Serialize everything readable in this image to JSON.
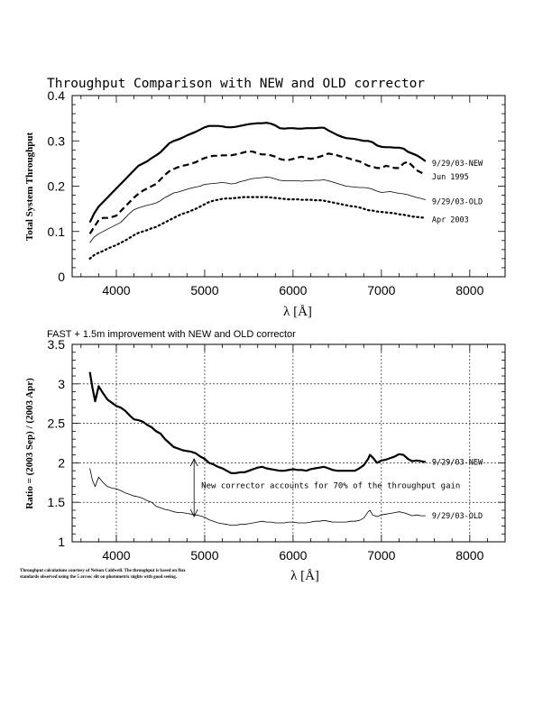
{
  "chart_data": [
    {
      "type": "line",
      "title": "Throughput Comparison with NEW and OLD corrector",
      "xlabel": "λ [Å]",
      "ylabel": "Total System Throughput",
      "xlim": [
        3500,
        8400
      ],
      "ylim": [
        0,
        0.4
      ],
      "xticks": [
        4000,
        5000,
        6000,
        7000,
        8000
      ],
      "yticks": [
        0,
        0.1,
        0.2,
        0.3,
        0.4
      ],
      "grid": false,
      "series": [
        {
          "name": "9/29/03-NEW",
          "style": "solid-thick",
          "x": [
            3700,
            3750,
            3800,
            3850,
            3900,
            3950,
            4000,
            4050,
            4100,
            4150,
            4200,
            4250,
            4300,
            4350,
            4400,
            4450,
            4500,
            4550,
            4600,
            4650,
            4700,
            4750,
            4800,
            4850,
            4900,
            4950,
            5000,
            5050,
            5100,
            5150,
            5200,
            5250,
            5300,
            5350,
            5400,
            5450,
            5500,
            5550,
            5600,
            5650,
            5700,
            5750,
            5800,
            5850,
            5900,
            5950,
            6000,
            6050,
            6100,
            6150,
            6200,
            6250,
            6300,
            6350,
            6400,
            6450,
            6500,
            6550,
            6600,
            6650,
            6700,
            6750,
            6800,
            6850,
            6900,
            6950,
            7000,
            7050,
            7100,
            7150,
            7200,
            7250,
            7300,
            7350,
            7400,
            7450,
            7500
          ],
          "y": [
            0.12,
            0.14,
            0.155,
            0.165,
            0.175,
            0.185,
            0.195,
            0.205,
            0.215,
            0.225,
            0.235,
            0.245,
            0.25,
            0.255,
            0.262,
            0.268,
            0.275,
            0.285,
            0.295,
            0.3,
            0.303,
            0.307,
            0.312,
            0.316,
            0.32,
            0.325,
            0.33,
            0.333,
            0.333,
            0.333,
            0.332,
            0.33,
            0.33,
            0.331,
            0.333,
            0.335,
            0.337,
            0.338,
            0.339,
            0.339,
            0.34,
            0.338,
            0.334,
            0.328,
            0.327,
            0.328,
            0.328,
            0.327,
            0.327,
            0.328,
            0.328,
            0.328,
            0.329,
            0.329,
            0.323,
            0.318,
            0.313,
            0.309,
            0.306,
            0.305,
            0.304,
            0.302,
            0.3,
            0.3,
            0.297,
            0.29,
            0.287,
            0.286,
            0.286,
            0.285,
            0.285,
            0.283,
            0.276,
            0.272,
            0.268,
            0.262,
            0.255
          ]
        },
        {
          "name": "Jun 1995",
          "style": "dashed-thick",
          "x": [
            3700,
            3750,
            3800,
            3850,
            3900,
            3950,
            4000,
            4050,
            4100,
            4150,
            4200,
            4250,
            4300,
            4350,
            4400,
            4450,
            4500,
            4550,
            4600,
            4650,
            4700,
            4750,
            4800,
            4850,
            4900,
            4950,
            5000,
            5050,
            5100,
            5150,
            5200,
            5250,
            5300,
            5350,
            5400,
            5450,
            5500,
            5550,
            5600,
            5650,
            5700,
            5750,
            5800,
            5850,
            5900,
            5950,
            6000,
            6050,
            6100,
            6150,
            6200,
            6250,
            6300,
            6350,
            6400,
            6450,
            6500,
            6550,
            6600,
            6650,
            6700,
            6750,
            6800,
            6850,
            6900,
            6950,
            7000,
            7050,
            7100,
            7150,
            7200,
            7250,
            7300,
            7350,
            7400,
            7450,
            7500
          ],
          "y": [
            0.095,
            0.11,
            0.125,
            0.13,
            0.13,
            0.132,
            0.135,
            0.145,
            0.155,
            0.165,
            0.175,
            0.183,
            0.19,
            0.195,
            0.2,
            0.205,
            0.215,
            0.225,
            0.233,
            0.238,
            0.242,
            0.245,
            0.247,
            0.25,
            0.253,
            0.258,
            0.262,
            0.265,
            0.267,
            0.267,
            0.268,
            0.268,
            0.268,
            0.27,
            0.272,
            0.275,
            0.277,
            0.276,
            0.272,
            0.27,
            0.27,
            0.268,
            0.265,
            0.26,
            0.258,
            0.258,
            0.26,
            0.263,
            0.265,
            0.262,
            0.26,
            0.262,
            0.265,
            0.268,
            0.272,
            0.27,
            0.268,
            0.265,
            0.263,
            0.26,
            0.257,
            0.255,
            0.25,
            0.245,
            0.243,
            0.24,
            0.24,
            0.245,
            0.243,
            0.24,
            0.24,
            0.25,
            0.254,
            0.245,
            0.235,
            0.23,
            0.225
          ]
        },
        {
          "name": "9/29/03-OLD",
          "style": "solid-thin",
          "x": [
            3700,
            3750,
            3800,
            3850,
            3900,
            3950,
            4000,
            4050,
            4100,
            4150,
            4200,
            4250,
            4300,
            4350,
            4400,
            4450,
            4500,
            4550,
            4600,
            4650,
            4700,
            4750,
            4800,
            4850,
            4900,
            4950,
            5000,
            5050,
            5100,
            5150,
            5200,
            5250,
            5300,
            5350,
            5400,
            5450,
            5500,
            5550,
            5600,
            5650,
            5700,
            5750,
            5800,
            5850,
            5900,
            5950,
            6000,
            6050,
            6100,
            6150,
            6200,
            6250,
            6300,
            6350,
            6400,
            6450,
            6500,
            6550,
            6600,
            6650,
            6700,
            6750,
            6800,
            6850,
            6900,
            6950,
            7000,
            7050,
            7100,
            7150,
            7200,
            7250,
            7300,
            7350,
            7400,
            7450,
            7500
          ],
          "y": [
            0.075,
            0.088,
            0.095,
            0.1,
            0.105,
            0.11,
            0.115,
            0.12,
            0.13,
            0.14,
            0.148,
            0.152,
            0.155,
            0.158,
            0.16,
            0.163,
            0.168,
            0.175,
            0.18,
            0.185,
            0.187,
            0.19,
            0.193,
            0.196,
            0.198,
            0.2,
            0.204,
            0.205,
            0.206,
            0.207,
            0.208,
            0.207,
            0.205,
            0.206,
            0.21,
            0.212,
            0.215,
            0.217,
            0.218,
            0.219,
            0.22,
            0.219,
            0.216,
            0.213,
            0.212,
            0.212,
            0.212,
            0.212,
            0.211,
            0.212,
            0.212,
            0.213,
            0.213,
            0.214,
            0.212,
            0.209,
            0.206,
            0.203,
            0.2,
            0.199,
            0.198,
            0.197,
            0.197,
            0.196,
            0.193,
            0.189,
            0.186,
            0.187,
            0.188,
            0.186,
            0.184,
            0.183,
            0.181,
            0.178,
            0.175,
            0.173,
            0.17
          ]
        },
        {
          "name": "Apr 2003",
          "style": "dotted-thick",
          "x": [
            3700,
            3750,
            3800,
            3850,
            3900,
            3950,
            4000,
            4050,
            4100,
            4150,
            4200,
            4250,
            4300,
            4350,
            4400,
            4450,
            4500,
            4550,
            4600,
            4650,
            4700,
            4750,
            4800,
            4850,
            4900,
            4950,
            5000,
            5050,
            5100,
            5150,
            5200,
            5250,
            5300,
            5350,
            5400,
            5450,
            5500,
            5550,
            5600,
            5650,
            5700,
            5750,
            5800,
            5850,
            5900,
            5950,
            6000,
            6050,
            6100,
            6150,
            6200,
            6250,
            6300,
            6350,
            6400,
            6450,
            6500,
            6550,
            6600,
            6650,
            6700,
            6750,
            6800,
            6850,
            6900,
            6950,
            7000,
            7050,
            7100,
            7150,
            7200,
            7250,
            7300,
            7350,
            7400,
            7450,
            7500
          ],
          "y": [
            0.04,
            0.048,
            0.053,
            0.057,
            0.062,
            0.066,
            0.07,
            0.075,
            0.08,
            0.086,
            0.092,
            0.097,
            0.1,
            0.103,
            0.107,
            0.11,
            0.115,
            0.12,
            0.125,
            0.13,
            0.135,
            0.139,
            0.142,
            0.146,
            0.15,
            0.155,
            0.16,
            0.165,
            0.168,
            0.17,
            0.172,
            0.173,
            0.173,
            0.174,
            0.175,
            0.176,
            0.176,
            0.176,
            0.176,
            0.176,
            0.176,
            0.175,
            0.174,
            0.173,
            0.172,
            0.171,
            0.171,
            0.171,
            0.17,
            0.17,
            0.17,
            0.169,
            0.169,
            0.168,
            0.166,
            0.164,
            0.162,
            0.16,
            0.158,
            0.156,
            0.155,
            0.153,
            0.15,
            0.147,
            0.146,
            0.144,
            0.143,
            0.142,
            0.141,
            0.14,
            0.138,
            0.137,
            0.135,
            0.133,
            0.132,
            0.131,
            0.13
          ]
        }
      ]
    },
    {
      "type": "line",
      "title": "FAST + 1.5m improvement with NEW and OLD corrector",
      "xlabel": "λ [Å]",
      "ylabel": "Ratio = (2003 Sep) / (2003 Apr)",
      "xlim": [
        3500,
        8400
      ],
      "ylim": [
        1,
        3.5
      ],
      "xticks": [
        4000,
        5000,
        6000,
        7000,
        8000
      ],
      "yticks": [
        1,
        1.5,
        2,
        2.5,
        3,
        3.5
      ],
      "ytick_labels": [
        "1",
        "1.5",
        "2",
        "2.5",
        "3",
        "3.5"
      ],
      "grid": true,
      "series": [
        {
          "name": "9/29/03-NEW",
          "style": "solid-thick",
          "x": [
            3700,
            3730,
            3760,
            3800,
            3850,
            3900,
            3950,
            4000,
            4050,
            4100,
            4150,
            4200,
            4250,
            4300,
            4350,
            4400,
            4450,
            4500,
            4550,
            4600,
            4650,
            4700,
            4750,
            4800,
            4850,
            4900,
            4950,
            5000,
            5050,
            5100,
            5150,
            5200,
            5250,
            5300,
            5350,
            5400,
            5450,
            5500,
            5550,
            5600,
            5650,
            5700,
            5750,
            5800,
            5850,
            5900,
            5950,
            6000,
            6050,
            6100,
            6150,
            6200,
            6250,
            6300,
            6350,
            6400,
            6450,
            6500,
            6550,
            6600,
            6650,
            6700,
            6750,
            6800,
            6850,
            6870,
            6900,
            6950,
            7000,
            7050,
            7100,
            7150,
            7200,
            7250,
            7300,
            7350,
            7400,
            7450,
            7500
          ],
          "y": [
            3.15,
            2.95,
            2.78,
            2.97,
            2.88,
            2.8,
            2.76,
            2.72,
            2.7,
            2.66,
            2.6,
            2.55,
            2.54,
            2.52,
            2.48,
            2.45,
            2.4,
            2.37,
            2.3,
            2.25,
            2.2,
            2.18,
            2.16,
            2.15,
            2.14,
            2.12,
            2.08,
            2.05,
            2.0,
            1.98,
            1.95,
            1.93,
            1.9,
            1.87,
            1.87,
            1.88,
            1.88,
            1.9,
            1.92,
            1.94,
            1.95,
            1.93,
            1.92,
            1.91,
            1.9,
            1.9,
            1.91,
            1.92,
            1.91,
            1.91,
            1.9,
            1.92,
            1.93,
            1.94,
            1.95,
            1.93,
            1.91,
            1.9,
            1.9,
            1.9,
            1.9,
            1.9,
            1.93,
            1.97,
            2.05,
            2.1,
            2.07,
            2.0,
            2.03,
            2.04,
            2.06,
            2.08,
            2.11,
            2.1,
            2.05,
            2.02,
            2.03,
            2.02,
            2.01
          ]
        },
        {
          "name": "9/29/03-OLD",
          "style": "solid-thin",
          "x": [
            3700,
            3730,
            3760,
            3800,
            3850,
            3900,
            3950,
            4000,
            4050,
            4100,
            4150,
            4200,
            4250,
            4300,
            4350,
            4400,
            4450,
            4500,
            4550,
            4600,
            4650,
            4700,
            4750,
            4800,
            4850,
            4900,
            4950,
            5000,
            5050,
            5100,
            5150,
            5200,
            5250,
            5300,
            5350,
            5400,
            5450,
            5500,
            5550,
            5600,
            5650,
            5700,
            5750,
            5800,
            5850,
            5900,
            5950,
            6000,
            6050,
            6100,
            6150,
            6200,
            6250,
            6300,
            6350,
            6400,
            6450,
            6500,
            6550,
            6600,
            6650,
            6700,
            6750,
            6800,
            6850,
            6870,
            6900,
            6950,
            7000,
            7050,
            7100,
            7150,
            7200,
            7250,
            7300,
            7350,
            7400,
            7450,
            7500
          ],
          "y": [
            1.93,
            1.78,
            1.7,
            1.82,
            1.75,
            1.7,
            1.68,
            1.67,
            1.65,
            1.62,
            1.6,
            1.58,
            1.57,
            1.55,
            1.52,
            1.5,
            1.45,
            1.43,
            1.41,
            1.4,
            1.38,
            1.37,
            1.37,
            1.36,
            1.35,
            1.34,
            1.33,
            1.31,
            1.28,
            1.26,
            1.24,
            1.23,
            1.22,
            1.21,
            1.21,
            1.22,
            1.22,
            1.23,
            1.24,
            1.25,
            1.26,
            1.25,
            1.25,
            1.24,
            1.24,
            1.24,
            1.25,
            1.25,
            1.24,
            1.24,
            1.24,
            1.25,
            1.26,
            1.26,
            1.27,
            1.26,
            1.25,
            1.25,
            1.25,
            1.25,
            1.26,
            1.26,
            1.27,
            1.3,
            1.38,
            1.4,
            1.34,
            1.32,
            1.34,
            1.35,
            1.36,
            1.37,
            1.38,
            1.37,
            1.35,
            1.33,
            1.34,
            1.33,
            1.33
          ]
        }
      ],
      "annotation": {
        "text": "New corrector accounts for 70% of the throughput gain",
        "arrow_x": 4880,
        "arrow_from": 1.32,
        "arrow_to": 2.05
      }
    }
  ],
  "footnote": {
    "line1": "Throughput calculations courtesy of Nelson Caldwell.  The throughput is based on flux",
    "line2": "standards observed using the 5 arcsec slit on photometric nights with good seeing."
  }
}
